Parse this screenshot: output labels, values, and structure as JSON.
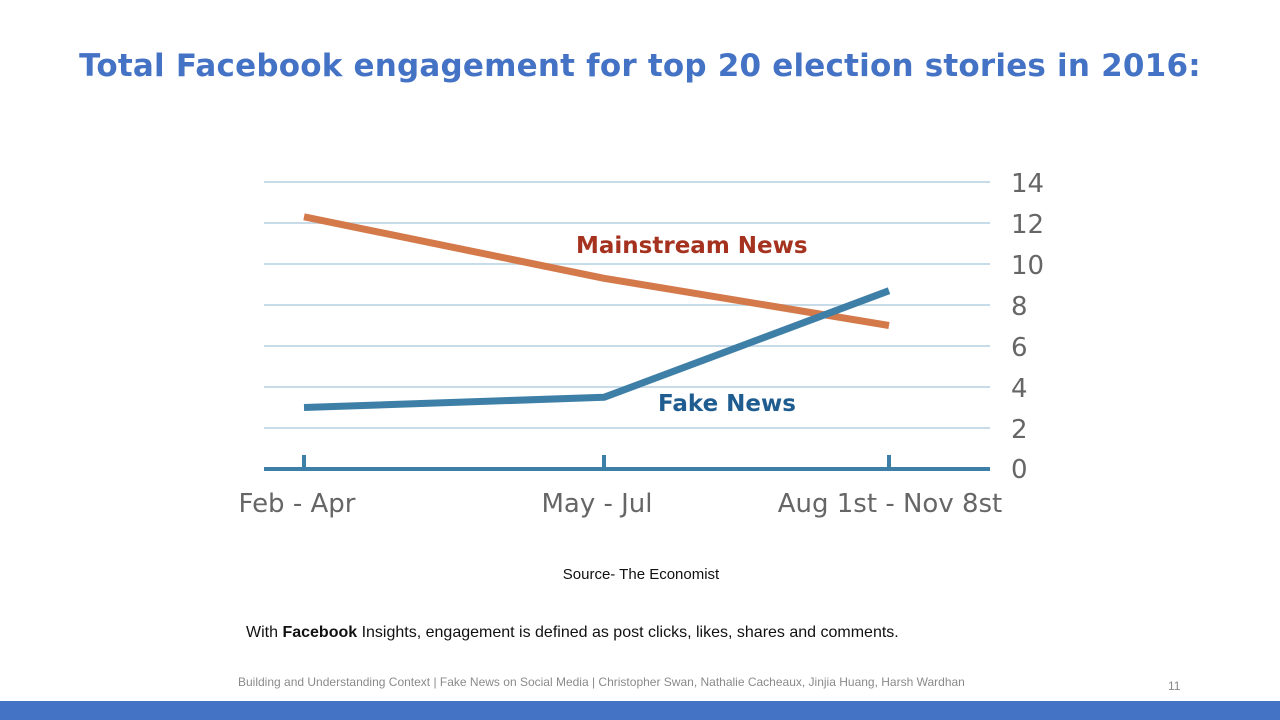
{
  "slide": {
    "title": "Total Facebook engagement for top 20 election stories in 2016:",
    "source": "Source- The Economist",
    "note": {
      "prefix": "With ",
      "bold": "Facebook",
      "suffix": " Insights, engagement is defined as post clicks, likes, shares and comments."
    },
    "footer": "Building and Understanding Context | Fake News on Social Media | Christopher Swan, Nathalie Cacheaux, Jinjia Huang, Harsh Wardhan",
    "page_number": "11",
    "bar_color": "#4472c4"
  },
  "chart_data": {
    "type": "line",
    "title": "",
    "xlabel": "",
    "ylabel": "",
    "categories": [
      "Feb - Apr",
      "May - Jul",
      "Aug 1st - Nov 8st"
    ],
    "ylim": [
      0,
      14
    ],
    "yticks": [
      "0",
      "2",
      "4",
      "6",
      "8",
      "10",
      "12",
      "14"
    ],
    "grid": true,
    "y_axis_side": "right",
    "series": [
      {
        "name": "Mainstream News",
        "values": [
          12.3,
          9.3,
          7.0
        ],
        "color": "#d4794a",
        "label_color": "#a5321e"
      },
      {
        "name": "Fake News",
        "values": [
          3.0,
          3.5,
          8.7
        ],
        "color": "#3d7fa6",
        "label_color": "#1f5c8f"
      }
    ]
  }
}
